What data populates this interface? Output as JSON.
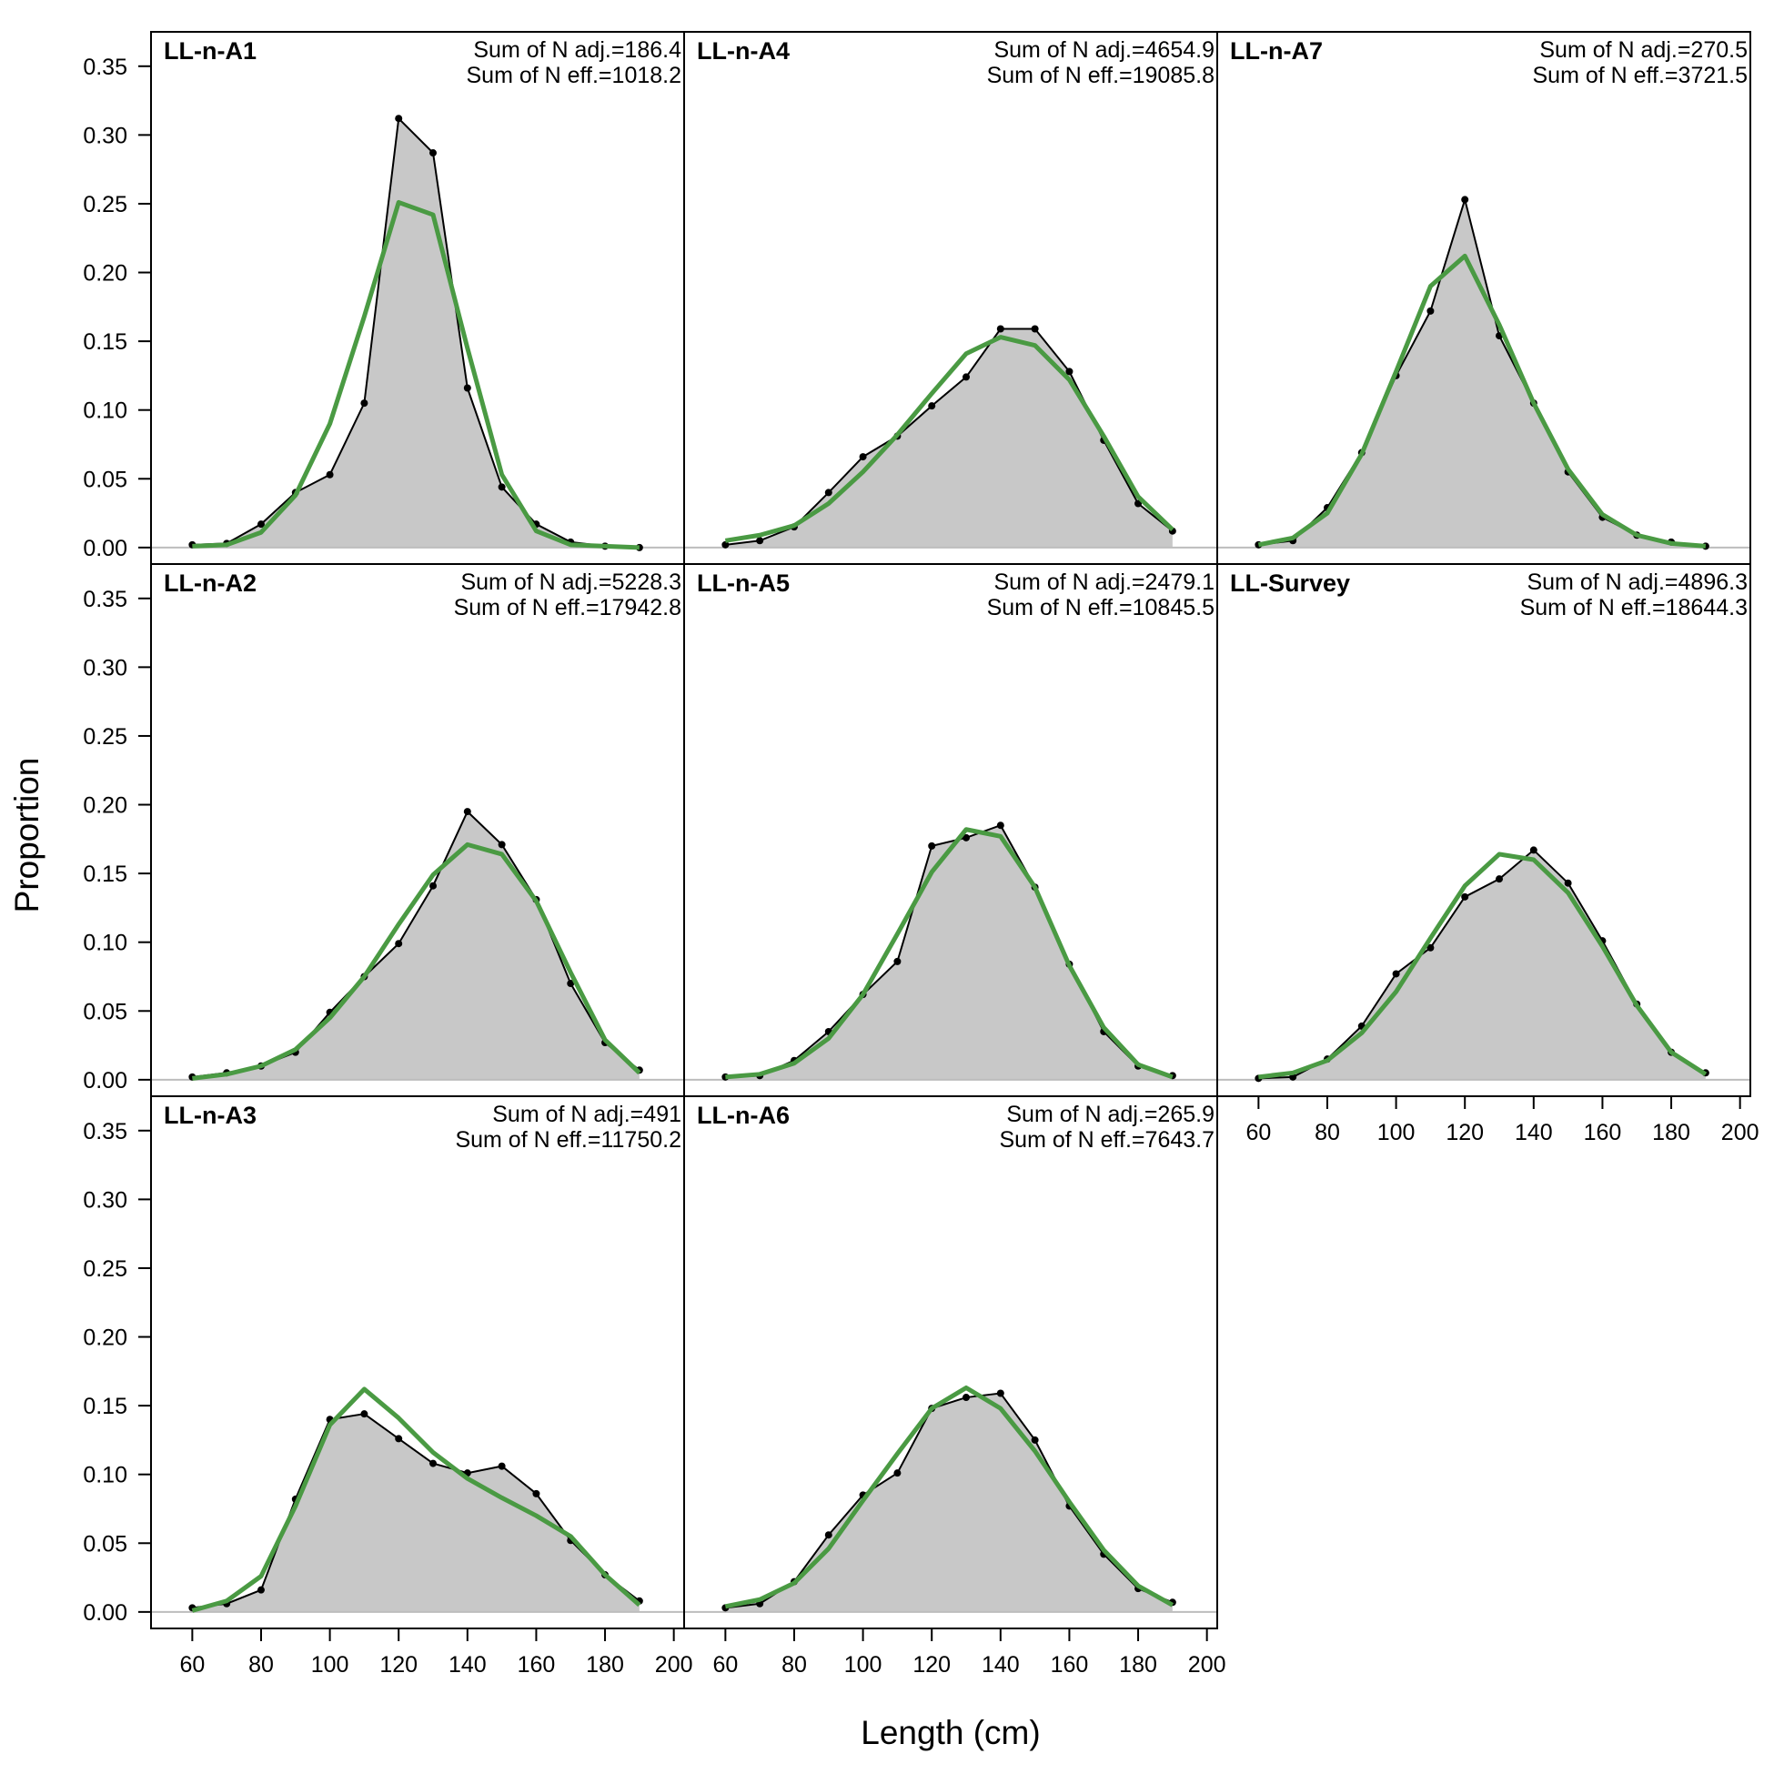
{
  "figure": {
    "xlabel": "Length (cm)",
    "ylabel": "Proportion"
  },
  "colors": {
    "observed_fill": "#c8c8c8",
    "observed_line": "#000000",
    "expected_line": "#4a9a43",
    "zero_line": "#bdbdbd"
  },
  "chart_data": {
    "type": "area",
    "x": [
      60,
      70,
      80,
      90,
      100,
      110,
      120,
      130,
      140,
      150,
      160,
      170,
      180,
      190
    ],
    "xlim": [
      48,
      203
    ],
    "ylim": [
      -0.012,
      0.375
    ],
    "xticks": [
      60,
      80,
      100,
      120,
      140,
      160,
      180,
      200
    ],
    "yticks": [
      0.0,
      0.05,
      0.1,
      0.15,
      0.2,
      0.25,
      0.3,
      0.35
    ],
    "ytick_labels": [
      "0.00",
      "0.05",
      "0.10",
      "0.15",
      "0.20",
      "0.25",
      "0.30",
      "0.35"
    ],
    "grid": false,
    "panels": [
      {
        "title": "LL-n-A1",
        "n_adj": "Sum of N adj.=186.4",
        "n_eff": "Sum of N eff.=1018.2",
        "observed": [
          0.002,
          0.003,
          0.017,
          0.04,
          0.053,
          0.105,
          0.312,
          0.287,
          0.116,
          0.044,
          0.017,
          0.004,
          0.001,
          0.0
        ],
        "expected": [
          0.001,
          0.002,
          0.011,
          0.038,
          0.09,
          0.168,
          0.251,
          0.242,
          0.145,
          0.053,
          0.012,
          0.002,
          0.001,
          0.0
        ]
      },
      {
        "title": "LL-n-A4",
        "n_adj": "Sum of N adj.=4654.9",
        "n_eff": "Sum of N eff.=19085.8",
        "observed": [
          0.002,
          0.005,
          0.015,
          0.04,
          0.066,
          0.081,
          0.103,
          0.124,
          0.159,
          0.159,
          0.128,
          0.078,
          0.032,
          0.012
        ],
        "expected": [
          0.005,
          0.009,
          0.016,
          0.032,
          0.055,
          0.082,
          0.112,
          0.141,
          0.153,
          0.147,
          0.122,
          0.081,
          0.037,
          0.013
        ]
      },
      {
        "title": "LL-n-A7",
        "n_adj": "Sum of N adj.=270.5",
        "n_eff": "Sum of N eff.=3721.5",
        "observed": [
          0.002,
          0.005,
          0.029,
          0.069,
          0.125,
          0.172,
          0.253,
          0.154,
          0.105,
          0.055,
          0.022,
          0.009,
          0.004,
          0.001
        ],
        "expected": [
          0.002,
          0.007,
          0.025,
          0.068,
          0.128,
          0.19,
          0.212,
          0.162,
          0.105,
          0.057,
          0.024,
          0.009,
          0.003,
          0.001
        ]
      },
      {
        "title": "LL-n-A2",
        "n_adj": "Sum of N adj.=5228.3",
        "n_eff": "Sum of N eff.=17942.8",
        "observed": [
          0.002,
          0.005,
          0.01,
          0.02,
          0.049,
          0.075,
          0.099,
          0.141,
          0.195,
          0.171,
          0.131,
          0.07,
          0.027,
          0.007
        ],
        "expected": [
          0.001,
          0.004,
          0.01,
          0.022,
          0.045,
          0.075,
          0.113,
          0.149,
          0.171,
          0.164,
          0.13,
          0.078,
          0.029,
          0.005
        ]
      },
      {
        "title": "LL-n-A5",
        "n_adj": "Sum of N adj.=2479.1",
        "n_eff": "Sum of N eff.=10845.5",
        "observed": [
          0.002,
          0.003,
          0.014,
          0.035,
          0.062,
          0.086,
          0.17,
          0.176,
          0.185,
          0.14,
          0.084,
          0.035,
          0.01,
          0.003
        ],
        "expected": [
          0.002,
          0.004,
          0.012,
          0.03,
          0.062,
          0.106,
          0.151,
          0.182,
          0.177,
          0.14,
          0.083,
          0.038,
          0.011,
          0.002
        ]
      },
      {
        "title": "LL-Survey",
        "n_adj": "Sum of N adj.=4896.3",
        "n_eff": "Sum of N eff.=18644.3",
        "observed": [
          0.001,
          0.002,
          0.015,
          0.039,
          0.077,
          0.096,
          0.133,
          0.146,
          0.167,
          0.143,
          0.101,
          0.055,
          0.02,
          0.005
        ],
        "expected": [
          0.002,
          0.005,
          0.014,
          0.034,
          0.064,
          0.103,
          0.141,
          0.164,
          0.16,
          0.136,
          0.097,
          0.054,
          0.02,
          0.004
        ]
      },
      {
        "title": "LL-n-A3",
        "n_adj": "Sum of N adj.=491",
        "n_eff": "Sum of N eff.=11750.2",
        "observed": [
          0.003,
          0.006,
          0.016,
          0.082,
          0.14,
          0.144,
          0.126,
          0.108,
          0.101,
          0.106,
          0.086,
          0.052,
          0.027,
          0.008
        ],
        "expected": [
          0.001,
          0.008,
          0.026,
          0.077,
          0.136,
          0.162,
          0.141,
          0.116,
          0.097,
          0.083,
          0.07,
          0.055,
          0.027,
          0.005
        ]
      },
      {
        "title": "LL-n-A6",
        "n_adj": "Sum of N adj.=265.9",
        "n_eff": "Sum of N eff.=7643.7",
        "observed": [
          0.003,
          0.006,
          0.022,
          0.056,
          0.085,
          0.101,
          0.148,
          0.156,
          0.159,
          0.125,
          0.077,
          0.042,
          0.017,
          0.007
        ],
        "expected": [
          0.004,
          0.009,
          0.021,
          0.046,
          0.081,
          0.115,
          0.148,
          0.163,
          0.148,
          0.117,
          0.08,
          0.045,
          0.019,
          0.005
        ]
      }
    ]
  }
}
